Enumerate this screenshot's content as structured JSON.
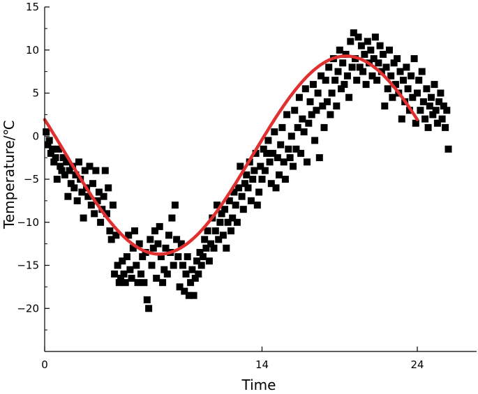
{
  "chart_data": {
    "type": "scatter",
    "xlabel": "Time",
    "ylabel": "Temperature/℃",
    "xlim": [
      0,
      28
    ],
    "ylim": [
      -25,
      15
    ],
    "xticks": [
      0,
      14,
      24
    ],
    "yticks": [
      -20,
      -15,
      -10,
      -5,
      0,
      5,
      10,
      15
    ],
    "fit_line": {
      "color": "#e03030",
      "mean": -2.2,
      "amplitude": 11.5,
      "period_hours": 24,
      "phase_hours": 1.4
    },
    "marker_color": "#000000",
    "series": [
      {
        "type": "scatter",
        "points": [
          [
            0.1,
            0.5
          ],
          [
            0.2,
            -1
          ],
          [
            0.3,
            -0.5
          ],
          [
            0.4,
            -2
          ],
          [
            0.5,
            -1.5
          ],
          [
            0.6,
            -3
          ],
          [
            0.7,
            -2.5
          ],
          [
            0.8,
            -5
          ],
          [
            0.9,
            -1.5
          ],
          [
            1.0,
            -3.5
          ],
          [
            1.1,
            -4
          ],
          [
            1.2,
            -2.5
          ],
          [
            1.3,
            -4.5
          ],
          [
            1.4,
            -3
          ],
          [
            1.5,
            -7
          ],
          [
            1.6,
            -4
          ],
          [
            1.7,
            -5.5
          ],
          [
            1.8,
            -3.5
          ],
          [
            1.9,
            -6
          ],
          [
            2.0,
            -4.5
          ],
          [
            2.1,
            -7.5
          ],
          [
            2.2,
            -3
          ],
          [
            2.3,
            -5
          ],
          [
            2.4,
            -6.5
          ],
          [
            2.5,
            -9.5
          ],
          [
            2.6,
            -4
          ],
          [
            2.7,
            -6
          ],
          [
            2.8,
            -7
          ],
          [
            2.9,
            -3.5
          ],
          [
            3.0,
            -8
          ],
          [
            3.1,
            -5.5
          ],
          [
            3.2,
            -9
          ],
          [
            3.3,
            -4
          ],
          [
            3.4,
            -7.5
          ],
          [
            3.5,
            -6.5
          ],
          [
            3.6,
            -10
          ],
          [
            3.7,
            -8.5
          ],
          [
            3.8,
            -7
          ],
          [
            3.9,
            -4
          ],
          [
            4.0,
            -9
          ],
          [
            4.1,
            -6
          ],
          [
            4.2,
            -11
          ],
          [
            4.3,
            -12
          ],
          [
            4.4,
            -8
          ],
          [
            4.5,
            -16
          ],
          [
            4.6,
            -11.5
          ],
          [
            4.7,
            -15
          ],
          [
            4.8,
            -17
          ],
          [
            4.9,
            -16.5
          ],
          [
            5.0,
            -14.5
          ],
          [
            5.1,
            -16
          ],
          [
            5.2,
            -17
          ],
          [
            5.3,
            -14
          ],
          [
            5.4,
            -11.5
          ],
          [
            5.5,
            -15.5
          ],
          [
            5.6,
            -16.5
          ],
          [
            5.7,
            -13
          ],
          [
            5.8,
            -11
          ],
          [
            5.9,
            -15
          ],
          [
            6.0,
            -17
          ],
          [
            6.1,
            -12.5
          ],
          [
            6.2,
            -16
          ],
          [
            6.3,
            -14
          ],
          [
            6.4,
            -17
          ],
          [
            6.5,
            -13.5
          ],
          [
            6.6,
            -19
          ],
          [
            6.7,
            -20
          ],
          [
            6.8,
            -12
          ],
          [
            6.9,
            -15
          ],
          [
            7.0,
            -13
          ],
          [
            7.1,
            -11
          ],
          [
            7.2,
            -16.5
          ],
          [
            7.3,
            -12.5
          ],
          [
            7.4,
            -10.5
          ],
          [
            7.5,
            -14
          ],
          [
            7.6,
            -17
          ],
          [
            7.7,
            -15.5
          ],
          [
            7.8,
            -13
          ],
          [
            7.9,
            -16
          ],
          [
            8.0,
            -11.5
          ],
          [
            8.1,
            -13.5
          ],
          [
            8.2,
            -9.5
          ],
          [
            8.3,
            -15
          ],
          [
            8.4,
            -8
          ],
          [
            8.5,
            -12
          ],
          [
            8.6,
            -14
          ],
          [
            8.7,
            -17.5
          ],
          [
            8.8,
            -12.5
          ],
          [
            8.9,
            -15
          ],
          [
            9.0,
            -18
          ],
          [
            9.1,
            -16
          ],
          [
            9.2,
            -14
          ],
          [
            9.3,
            -18.5
          ],
          [
            9.4,
            -17
          ],
          [
            9.5,
            -15.5
          ],
          [
            9.6,
            -18.5
          ],
          [
            9.7,
            -16.5
          ],
          [
            9.8,
            -14.5
          ],
          [
            9.9,
            -16
          ],
          [
            10.0,
            -13.5
          ],
          [
            10.1,
            -15
          ],
          [
            10.2,
            -14
          ],
          [
            10.3,
            -12
          ],
          [
            10.4,
            -13
          ],
          [
            10.5,
            -11
          ],
          [
            10.6,
            -14.5
          ],
          [
            10.7,
            -12.5
          ],
          [
            10.8,
            -9.5
          ],
          [
            10.9,
            -13
          ],
          [
            11.0,
            -11
          ],
          [
            11.1,
            -8
          ],
          [
            11.2,
            -12
          ],
          [
            11.3,
            -10
          ],
          [
            11.4,
            -9
          ],
          [
            11.5,
            -11.5
          ],
          [
            11.6,
            -8.5
          ],
          [
            11.7,
            -13
          ],
          [
            11.8,
            -10
          ],
          [
            11.9,
            -7.5
          ],
          [
            12.0,
            -11
          ],
          [
            12.1,
            -9.5
          ],
          [
            12.2,
            -6.5
          ],
          [
            12.3,
            -8
          ],
          [
            12.4,
            -10
          ],
          [
            12.5,
            -6
          ],
          [
            12.6,
            -3.5
          ],
          [
            12.7,
            -7
          ],
          [
            12.8,
            -8.5
          ],
          [
            12.9,
            -5.5
          ],
          [
            13.0,
            -4.5
          ],
          [
            13.1,
            -6
          ],
          [
            13.2,
            -3
          ],
          [
            13.3,
            -7.5
          ],
          [
            13.4,
            -5
          ],
          [
            13.5,
            -4
          ],
          [
            13.6,
            -2
          ],
          [
            13.7,
            -8
          ],
          [
            13.8,
            -6.5
          ],
          [
            13.9,
            -3.5
          ],
          [
            14.0,
            -5
          ],
          [
            14.1,
            -1.5
          ],
          [
            14.2,
            -4
          ],
          [
            14.3,
            -2
          ],
          [
            14.4,
            -0.5
          ],
          [
            14.5,
            -3
          ],
          [
            14.6,
            -5.5
          ],
          [
            14.7,
            -2
          ],
          [
            14.8,
            0.5
          ],
          [
            14.9,
            -6
          ],
          [
            15.0,
            -2.5
          ],
          [
            15.1,
            -4.5
          ],
          [
            15.2,
            -1
          ],
          [
            15.3,
            1
          ],
          [
            15.4,
            -3
          ],
          [
            15.5,
            -5
          ],
          [
            15.6,
            2.5
          ],
          [
            15.7,
            -1.5
          ],
          [
            15.8,
            -2.5
          ],
          [
            15.9,
            0
          ],
          [
            16.0,
            -3.5
          ],
          [
            16.1,
            3
          ],
          [
            16.2,
            -1.5
          ],
          [
            16.3,
            1
          ],
          [
            16.4,
            4.5
          ],
          [
            16.5,
            -2
          ],
          [
            16.6,
            2
          ],
          [
            16.7,
            0.5
          ],
          [
            16.8,
            5.5
          ],
          [
            16.9,
            -3
          ],
          [
            17.0,
            1.5
          ],
          [
            17.1,
            4
          ],
          [
            17.2,
            2.5
          ],
          [
            17.3,
            6
          ],
          [
            17.4,
            -0.5
          ],
          [
            17.5,
            3
          ],
          [
            17.6,
            5
          ],
          [
            17.7,
            -2.5
          ],
          [
            17.8,
            7
          ],
          [
            17.9,
            3.5
          ],
          [
            18.0,
            1
          ],
          [
            18.1,
            6.5
          ],
          [
            18.2,
            4
          ],
          [
            18.3,
            8
          ],
          [
            18.4,
            2.5
          ],
          [
            18.5,
            5
          ],
          [
            18.6,
            9
          ],
          [
            18.7,
            6.5
          ],
          [
            18.8,
            3.5
          ],
          [
            18.9,
            7.5
          ],
          [
            19.0,
            10
          ],
          [
            19.1,
            5.5
          ],
          [
            19.2,
            8.5
          ],
          [
            19.3,
            6
          ],
          [
            19.4,
            9.5
          ],
          [
            19.5,
            7
          ],
          [
            19.6,
            4.5
          ],
          [
            19.7,
            11
          ],
          [
            19.8,
            8
          ],
          [
            19.9,
            12
          ],
          [
            20.0,
            9
          ],
          [
            20.1,
            6.5
          ],
          [
            20.2,
            11.5
          ],
          [
            20.3,
            8
          ],
          [
            20.4,
            10.5
          ],
          [
            20.5,
            7.5
          ],
          [
            20.6,
            9.5
          ],
          [
            20.7,
            6
          ],
          [
            20.8,
            11
          ],
          [
            20.9,
            8.5
          ],
          [
            21.0,
            10
          ],
          [
            21.1,
            7
          ],
          [
            21.2,
            9
          ],
          [
            21.3,
            11.5
          ],
          [
            21.4,
            6.5
          ],
          [
            21.5,
            8.5
          ],
          [
            21.6,
            10.5
          ],
          [
            21.7,
            7.5
          ],
          [
            21.8,
            9.5
          ],
          [
            21.9,
            3.5
          ],
          [
            22.0,
            8
          ],
          [
            22.1,
            5.5
          ],
          [
            22.2,
            10
          ],
          [
            22.3,
            7
          ],
          [
            22.4,
            4.5
          ],
          [
            22.5,
            8.5
          ],
          [
            22.6,
            6
          ],
          [
            22.7,
            9
          ],
          [
            22.8,
            5
          ],
          [
            22.9,
            7.5
          ],
          [
            23.0,
            2
          ],
          [
            23.1,
            6.5
          ],
          [
            23.2,
            4
          ],
          [
            23.3,
            8
          ],
          [
            23.4,
            5.5
          ],
          [
            23.5,
            3
          ],
          [
            23.6,
            7
          ],
          [
            23.7,
            4.5
          ],
          [
            23.8,
            9
          ],
          [
            23.9,
            1.5
          ],
          [
            24.0,
            5
          ],
          [
            24.1,
            6.5
          ],
          [
            24.2,
            3
          ],
          [
            24.3,
            7.5
          ],
          [
            24.4,
            4
          ],
          [
            24.5,
            2
          ],
          [
            24.6,
            5.5
          ],
          [
            24.7,
            1
          ],
          [
            24.8,
            3.5
          ],
          [
            24.9,
            4.5
          ],
          [
            25.0,
            2.5
          ],
          [
            25.1,
            6
          ],
          [
            25.2,
            3
          ],
          [
            25.3,
            1.5
          ],
          [
            25.4,
            4
          ],
          [
            25.5,
            5
          ],
          [
            25.6,
            2
          ],
          [
            25.7,
            3.5
          ],
          [
            25.8,
            1
          ],
          [
            25.9,
            3
          ],
          [
            26.0,
            -1.5
          ]
        ]
      }
    ]
  }
}
